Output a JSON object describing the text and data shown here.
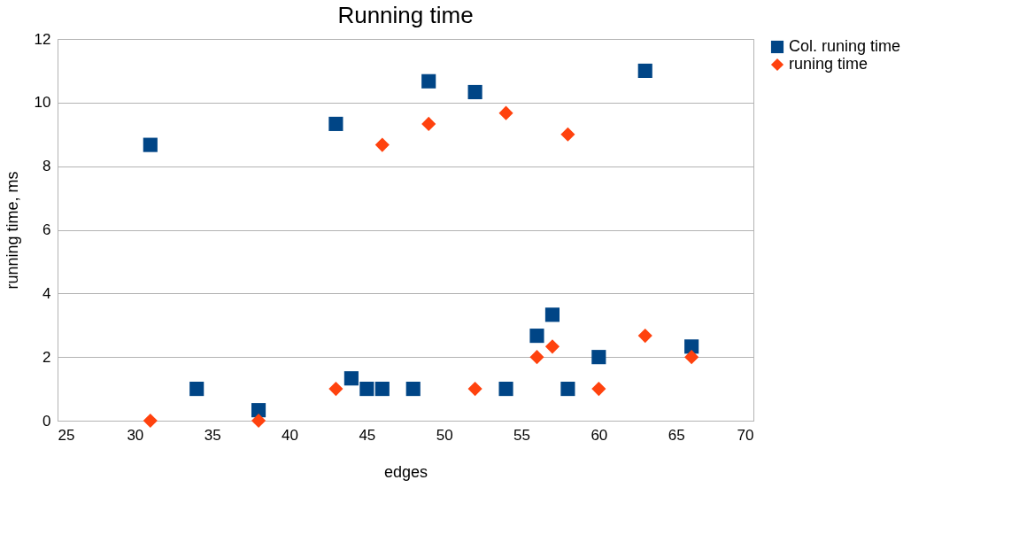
{
  "chart_data": {
    "type": "scatter",
    "title": "Running time",
    "xlabel": "edges",
    "ylabel": "running time, ms",
    "xlim": [
      25,
      70
    ],
    "xticks": [
      25,
      30,
      35,
      40,
      45,
      50,
      55,
      60,
      65,
      70
    ],
    "ylim": [
      0,
      12
    ],
    "yticks": [
      0,
      2,
      4,
      6,
      8,
      10,
      12
    ],
    "grid": "y",
    "legend": "right",
    "series": [
      {
        "name": "Col. runing time",
        "color": "#004586",
        "marker": "square",
        "x": [
          31,
          34,
          38,
          43,
          44,
          45,
          46,
          48,
          49,
          52,
          54,
          56,
          57,
          58,
          60,
          63,
          66
        ],
        "values": [
          8.67,
          1,
          0.33,
          9.33,
          1.33,
          1,
          1,
          1,
          10.67,
          10.33,
          1,
          2.67,
          3.33,
          1,
          2,
          11,
          2.33
        ]
      },
      {
        "name": "runing time",
        "color": "#ff420e",
        "marker": "diamond",
        "x": [
          31,
          38,
          43,
          46,
          49,
          52,
          54,
          56,
          57,
          58,
          60,
          63,
          66
        ],
        "values": [
          0,
          0,
          1,
          8.67,
          9.33,
          1,
          9.67,
          2,
          2.33,
          9,
          1,
          2.67,
          2
        ]
      }
    ]
  }
}
